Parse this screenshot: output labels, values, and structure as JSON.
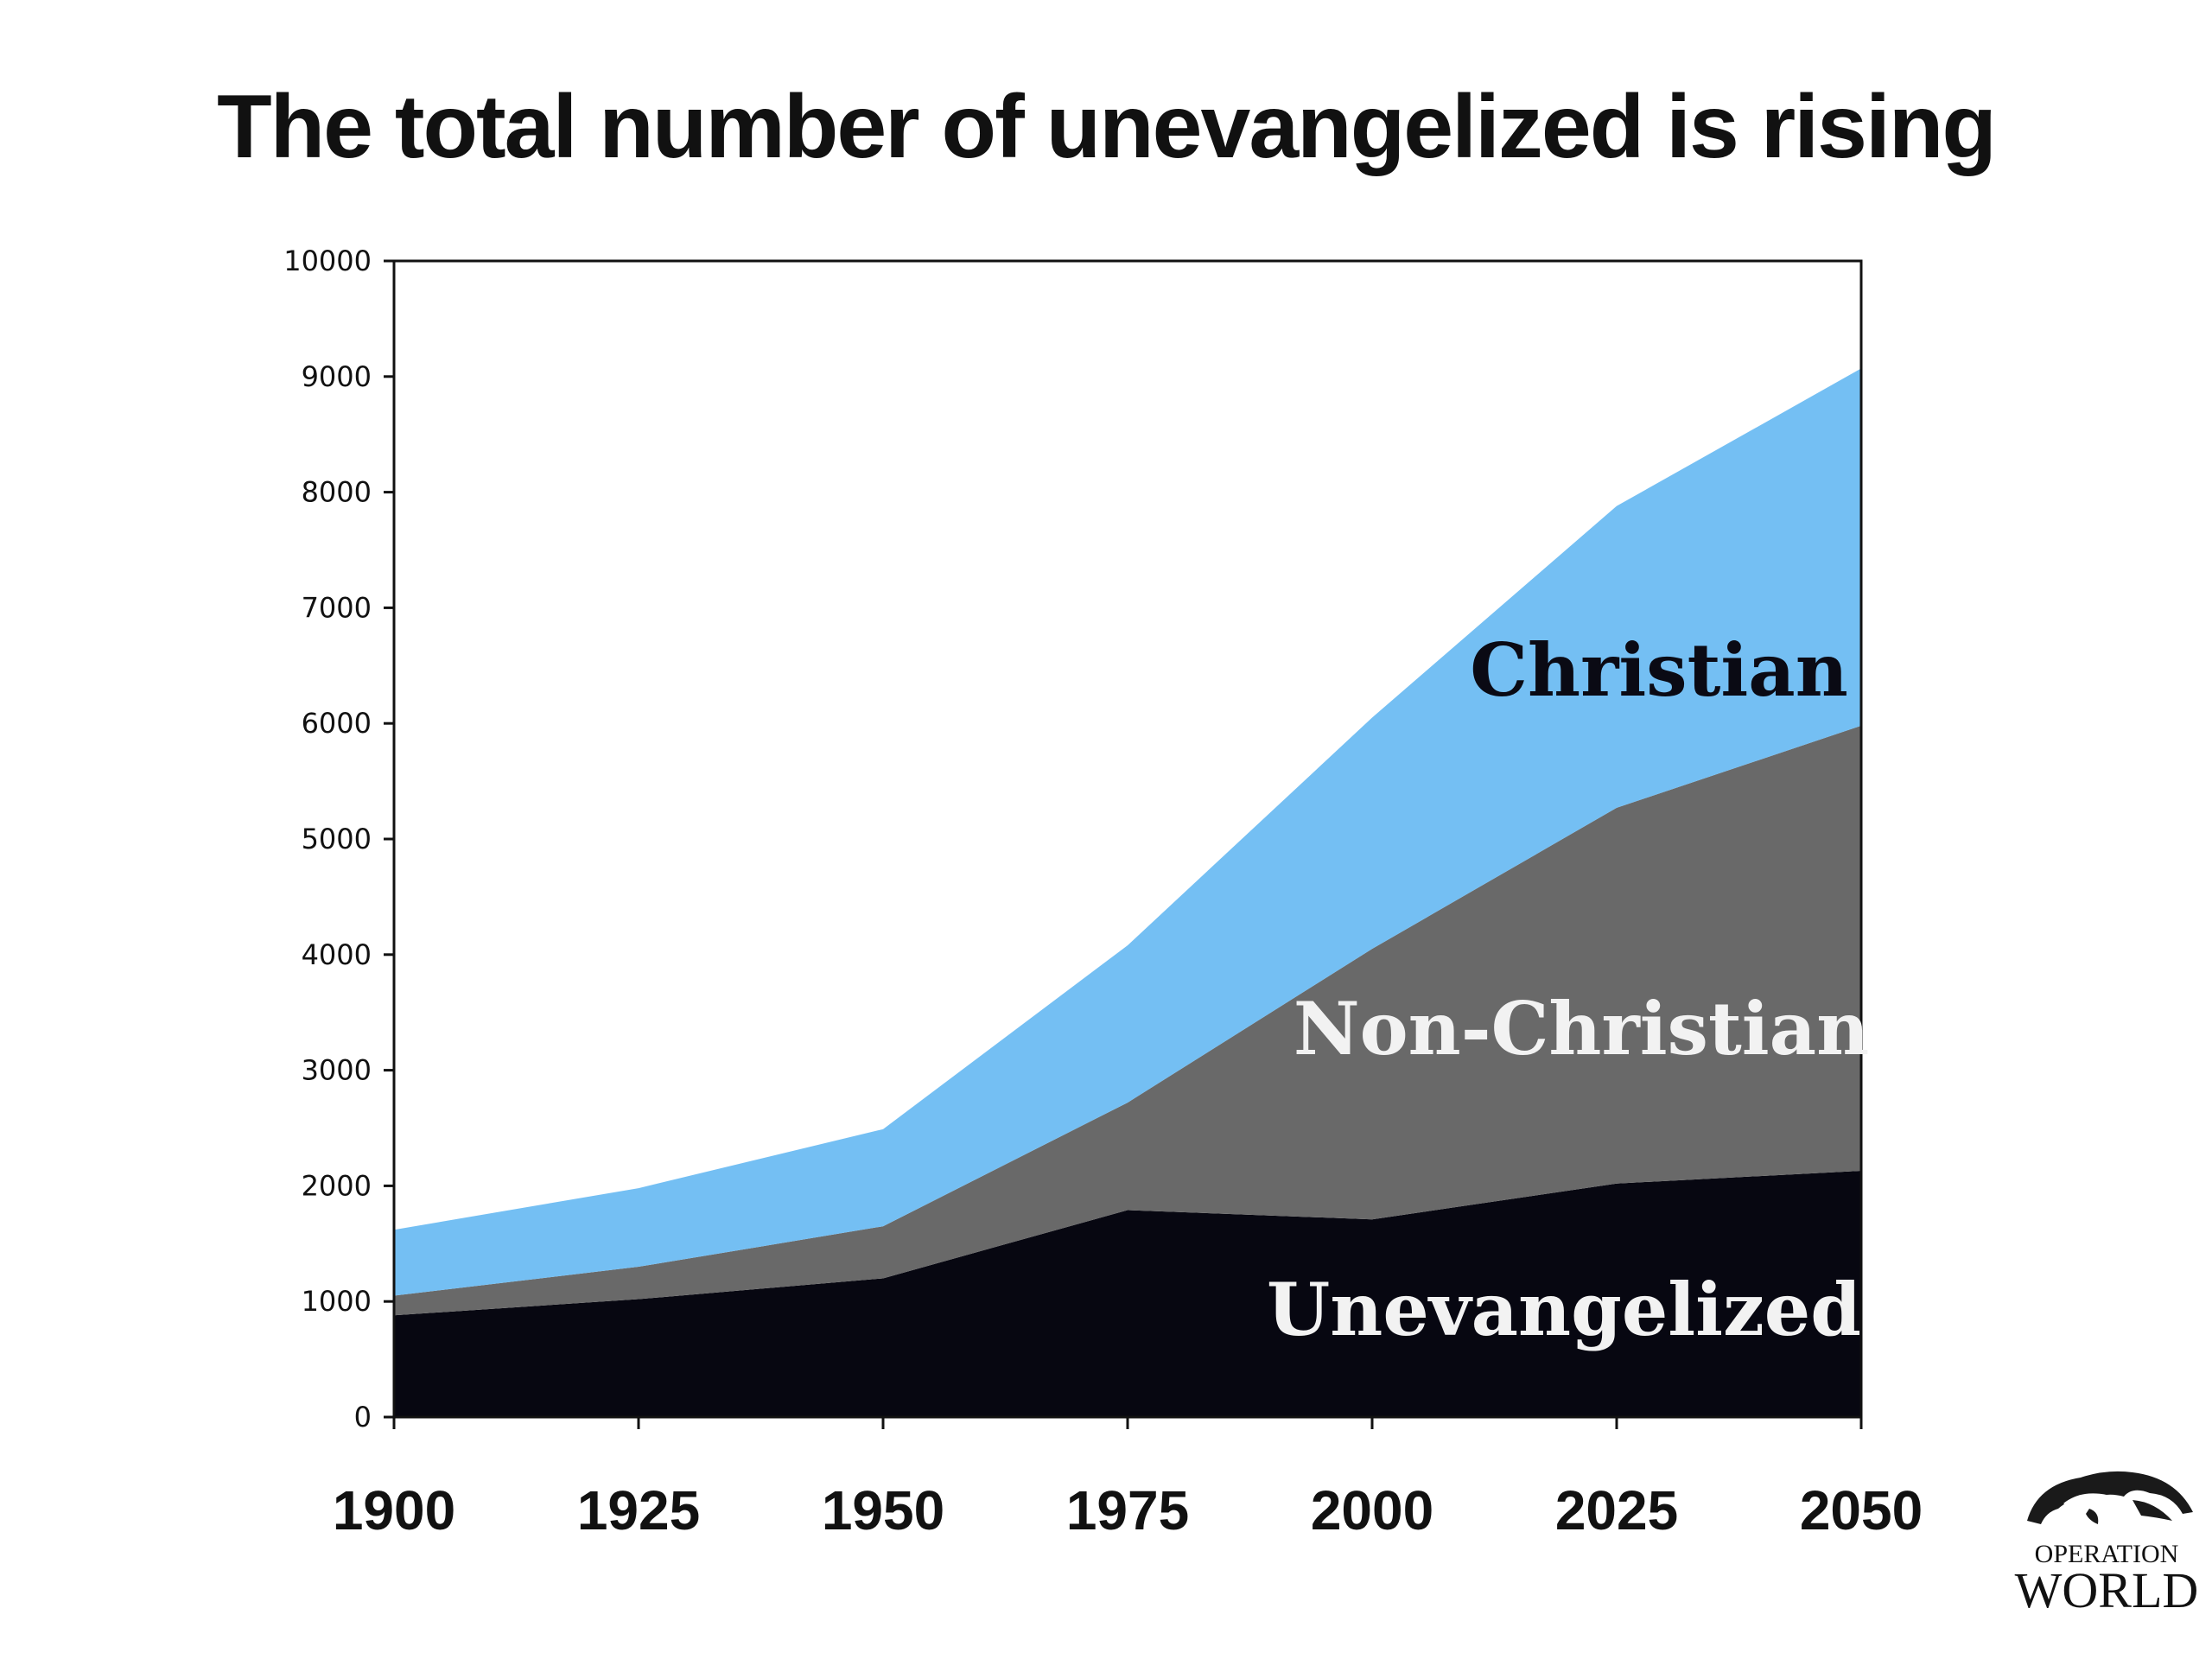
{
  "chart_data": {
    "type": "area",
    "stacked": true,
    "title": "The total number of unevangelized is rising",
    "xlabel": "",
    "ylabel": "",
    "x": [
      1900,
      1925,
      1950,
      1975,
      2000,
      2025,
      2050
    ],
    "ylim": [
      0,
      10000
    ],
    "yticks": [
      0,
      1000,
      2000,
      3000,
      4000,
      5000,
      6000,
      7000,
      8000,
      9000,
      10000
    ],
    "grid": false,
    "legend": "inline labels",
    "series": [
      {
        "name": "Unevangelized",
        "values": [
          880,
          1020,
          1200,
          1790,
          1710,
          2020,
          2130
        ],
        "color": "#070711",
        "label_color": "#f2f2f2"
      },
      {
        "name": "Non-Christian",
        "values": [
          170,
          280,
          450,
          930,
          2340,
          3250,
          3850
        ],
        "color": "#696969",
        "label_color": "#f2f2f2"
      },
      {
        "name": "Christian",
        "values": [
          570,
          680,
          840,
          1360,
          2000,
          2610,
          3090
        ],
        "color": "#74bff3",
        "label_color": "#0a0a14"
      }
    ]
  },
  "logo": {
    "line1": "OPERATION",
    "line2": "WORLD"
  }
}
